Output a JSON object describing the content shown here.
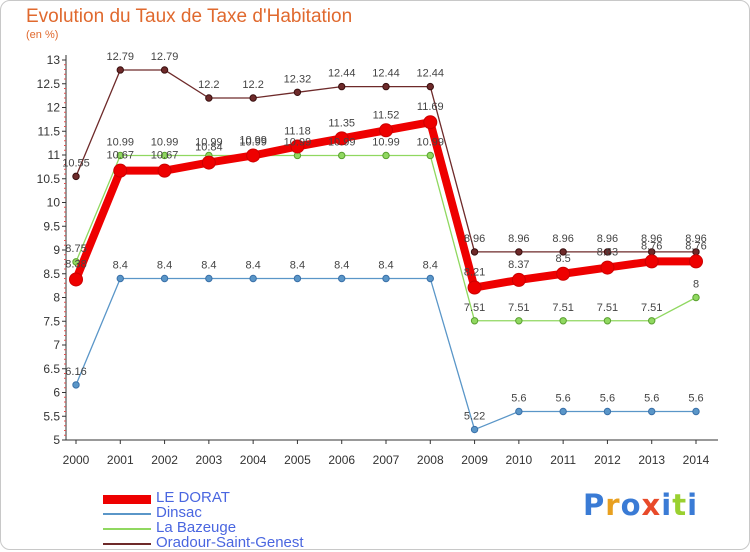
{
  "title": "Evolution du Taux de Taxe d'Habitation",
  "subtitle": "(en %)",
  "logo": {
    "text": "Proxiti",
    "colors": [
      "#3a7bd5",
      "#e8a020",
      "#3a7bd5",
      "#e84a2a",
      "#3a7bd5",
      "#9ad030",
      "#3a7bd5"
    ]
  },
  "chart_data": {
    "type": "line",
    "title": "Evolution du Taux de Taxe d'Habitation",
    "ylabel": "(en %)",
    "xlabel": "",
    "x": [
      "2000",
      "2001",
      "2002",
      "2003",
      "2004",
      "2005",
      "2006",
      "2007",
      "2008",
      "2009",
      "2010",
      "2011",
      "2012",
      "2013",
      "2014"
    ],
    "ylim": [
      5,
      13
    ],
    "yticks": [
      "5",
      "5.5",
      "6",
      "6.5",
      "7",
      "7.5",
      "8",
      "8.5",
      "9",
      "9.5",
      "10",
      "10.5",
      "11",
      "11.5",
      "12",
      "12.5",
      "13"
    ],
    "grid": "none",
    "legend_position": "bottom-left",
    "series": [
      {
        "name": "LE DORAT",
        "color": "#ee0000",
        "values": [
          8.38,
          10.67,
          10.67,
          10.84,
          10.99,
          11.18,
          11.35,
          11.52,
          11.69,
          8.21,
          8.37,
          8.5,
          8.63,
          8.76,
          8.76
        ],
        "labels": [
          "8.38",
          "10.67",
          "10.67",
          "10.84",
          "10.99",
          "11.18",
          "11.35",
          "11.52",
          "11.69",
          "8.21",
          "8.37",
          "8.5",
          "8.63",
          "8.76",
          "8.76"
        ]
      },
      {
        "name": "Dinsac",
        "color": "#5a96c8",
        "values": [
          6.16,
          8.4,
          8.4,
          8.4,
          8.4,
          8.4,
          8.4,
          8.4,
          8.4,
          5.22,
          5.6,
          5.6,
          5.6,
          5.6,
          5.6
        ],
        "labels": [
          "6.16",
          "8.4",
          "8.4",
          "8.4",
          "8.4",
          "8.4",
          "8.4",
          "8.4",
          "8.4",
          "5.22",
          "5.6",
          "5.6",
          "5.6",
          "5.6",
          "5.6"
        ]
      },
      {
        "name": "La Bazeuge",
        "color": "#90d860",
        "values": [
          8.75,
          10.99,
          10.99,
          10.99,
          10.99,
          10.99,
          10.99,
          10.99,
          10.99,
          7.51,
          7.51,
          7.51,
          7.51,
          7.51,
          8
        ],
        "labels": [
          "8.75",
          "10.99",
          "10.99",
          "10.99",
          "10.99",
          "10.99",
          "10.99",
          "10.99",
          "10.99",
          "7.51",
          "7.51",
          "7.51",
          "7.51",
          "7.51",
          "8"
        ]
      },
      {
        "name": "Oradour-Saint-Genest",
        "color": "#6e2a2a",
        "values": [
          10.55,
          12.79,
          12.79,
          12.2,
          12.2,
          12.32,
          12.44,
          12.44,
          12.44,
          8.96,
          8.96,
          8.96,
          8.96,
          8.96,
          8.96
        ],
        "labels": [
          "10.55",
          "12.79",
          "12.79",
          "12.2",
          "12.2",
          "12.32",
          "12.44",
          "12.44",
          "12.44",
          "8.96",
          "8.96",
          "8.96",
          "8.96",
          "8.96",
          "8.96"
        ]
      }
    ]
  }
}
